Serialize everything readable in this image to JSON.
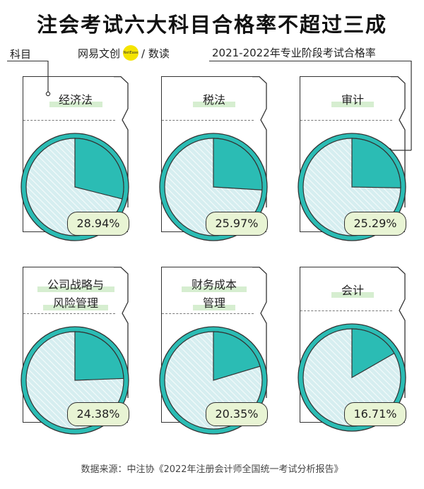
{
  "title": "注会考试六大科目合格率不超过三成",
  "label_subject": "科目",
  "brand": {
    "left": "网易文创",
    "dot": "NetEase",
    "right": "/ 数读"
  },
  "label_rate": "2021-2022年专业阶段考试合格率",
  "source": "数据来源：中注协《2022年注册会计师全国统一考试分析报告》",
  "colors": {
    "teal": "#2bbcb4",
    "light": "#d6eef0",
    "highlight": "#d6eed0",
    "badge": "#e8f4d4"
  },
  "chart_data": {
    "type": "pie",
    "title": "注会考试六大科目合格率不超过三成",
    "items": [
      {
        "name_lines": [
          "经济法"
        ],
        "value": 28.94,
        "label": "28.94%"
      },
      {
        "name_lines": [
          "税法"
        ],
        "value": 25.97,
        "label": "25.97%"
      },
      {
        "name_lines": [
          "审计"
        ],
        "value": 25.29,
        "label": "25.29%"
      },
      {
        "name_lines": [
          "公司战略与",
          "风险管理"
        ],
        "value": 24.38,
        "label": "24.38%"
      },
      {
        "name_lines": [
          "财务成本",
          "管理"
        ],
        "value": 20.35,
        "label": "20.35%"
      },
      {
        "name_lines": [
          "会计"
        ],
        "value": 16.71,
        "label": "16.71%"
      }
    ]
  }
}
